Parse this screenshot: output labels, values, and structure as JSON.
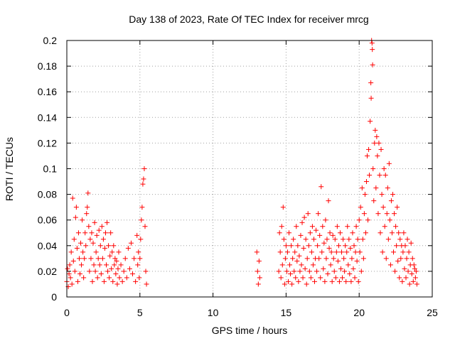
{
  "chart_data": {
    "type": "scatter",
    "title": "Day 138 of 2023, Rate Of TEC Index for receiver mrcg",
    "xlabel": "GPS time / hours",
    "ylabel": "ROTI / TECUs",
    "xlim": [
      0,
      25
    ],
    "ylim": [
      0,
      0.2
    ],
    "xticks": [
      0,
      5,
      10,
      15,
      20,
      25
    ],
    "yticks": [
      0,
      0.02,
      0.04,
      0.06,
      0.08,
      0.1,
      0.12,
      0.14,
      0.16,
      0.18,
      0.2
    ],
    "xtick_labels": [
      "0",
      "5",
      "10",
      "15",
      "20",
      "25"
    ],
    "ytick_labels": [
      "0",
      "0.02",
      "0.04",
      "0.06",
      "0.08",
      "0.1",
      "0.12",
      "0.14",
      "0.16",
      "0.18",
      "0.2"
    ],
    "grid": true,
    "marker": "+",
    "color": "#ff0000",
    "series": [
      {
        "points": [
          [
            0.0,
            0.012
          ],
          [
            0.05,
            0.022
          ],
          [
            0.1,
            0.008
          ],
          [
            0.15,
            0.018
          ],
          [
            0.2,
            0.025
          ],
          [
            0.25,
            0.015
          ],
          [
            0.3,
            0.035
          ],
          [
            0.35,
            0.01
          ],
          [
            0.4,
            0.077
          ],
          [
            0.45,
            0.028
          ],
          [
            0.5,
            0.045
          ],
          [
            0.55,
            0.02
          ],
          [
            0.6,
            0.062
          ],
          [
            0.65,
            0.07
          ],
          [
            0.7,
            0.038
          ],
          [
            0.75,
            0.012
          ],
          [
            0.8,
            0.05
          ],
          [
            0.85,
            0.03
          ],
          [
            0.9,
            0.018
          ],
          [
            0.95,
            0.042
          ],
          [
            1.0,
            0.025
          ],
          [
            1.05,
            0.06
          ],
          [
            1.1,
            0.035
          ],
          [
            1.15,
            0.015
          ],
          [
            1.2,
            0.03
          ],
          [
            1.25,
            0.05
          ],
          [
            1.3,
            0.04
          ],
          [
            1.35,
            0.065
          ],
          [
            1.4,
            0.07
          ],
          [
            1.45,
            0.081
          ],
          [
            1.5,
            0.055
          ],
          [
            1.55,
            0.02
          ],
          [
            1.6,
            0.045
          ],
          [
            1.65,
            0.03
          ],
          [
            1.7,
            0.05
          ],
          [
            1.75,
            0.012
          ],
          [
            1.8,
            0.042
          ],
          [
            1.85,
            0.025
          ],
          [
            1.9,
            0.058
          ],
          [
            1.95,
            0.02
          ],
          [
            2.0,
            0.035
          ],
          [
            2.05,
            0.048
          ],
          [
            2.1,
            0.015
          ],
          [
            2.15,
            0.03
          ],
          [
            2.2,
            0.052
          ],
          [
            2.25,
            0.025
          ],
          [
            2.3,
            0.04
          ],
          [
            2.35,
            0.018
          ],
          [
            2.4,
            0.055
          ],
          [
            2.45,
            0.03
          ],
          [
            2.5,
            0.045
          ],
          [
            2.55,
            0.012
          ],
          [
            2.6,
            0.038
          ],
          [
            2.65,
            0.05
          ],
          [
            2.7,
            0.025
          ],
          [
            2.75,
            0.058
          ],
          [
            2.8,
            0.02
          ],
          [
            2.85,
            0.04
          ],
          [
            2.9,
            0.015
          ],
          [
            2.95,
            0.032
          ],
          [
            3.0,
            0.05
          ],
          [
            3.05,
            0.022
          ],
          [
            3.1,
            0.035
          ],
          [
            3.15,
            0.012
          ],
          [
            3.2,
            0.04
          ],
          [
            3.25,
            0.025
          ],
          [
            3.3,
            0.03
          ],
          [
            3.35,
            0.018
          ],
          [
            3.4,
            0.028
          ],
          [
            3.45,
            0.01
          ],
          [
            3.5,
            0.022
          ],
          [
            3.55,
            0.035
          ],
          [
            3.6,
            0.015
          ],
          [
            3.7,
            0.025
          ],
          [
            3.8,
            0.012
          ],
          [
            3.9,
            0.02
          ],
          [
            4.0,
            0.03
          ],
          [
            4.1,
            0.015
          ],
          [
            4.2,
            0.038
          ],
          [
            4.3,
            0.022
          ],
          [
            4.4,
            0.042
          ],
          [
            4.5,
            0.018
          ],
          [
            4.6,
            0.03
          ],
          [
            4.7,
            0.012
          ],
          [
            4.8,
            0.048
          ],
          [
            4.85,
            0.025
          ],
          [
            4.9,
            0.035
          ],
          [
            4.95,
            0.015
          ],
          [
            5.0,
            0.03
          ],
          [
            5.05,
            0.045
          ],
          [
            5.1,
            0.06
          ],
          [
            5.15,
            0.07
          ],
          [
            5.2,
            0.088
          ],
          [
            5.25,
            0.092
          ],
          [
            5.3,
            0.1
          ],
          [
            5.35,
            0.055
          ],
          [
            5.4,
            0.02
          ],
          [
            5.45,
            0.01
          ],
          [
            13.0,
            0.035
          ],
          [
            13.05,
            0.02
          ],
          [
            13.1,
            0.01
          ],
          [
            13.15,
            0.028
          ],
          [
            13.2,
            0.015
          ],
          [
            14.5,
            0.02
          ],
          [
            14.55,
            0.05
          ],
          [
            14.6,
            0.035
          ],
          [
            14.65,
            0.015
          ],
          [
            14.7,
            0.055
          ],
          [
            14.75,
            0.025
          ],
          [
            14.8,
            0.07
          ],
          [
            14.85,
            0.045
          ],
          [
            14.9,
            0.01
          ],
          [
            14.95,
            0.03
          ],
          [
            15.0,
            0.04
          ],
          [
            15.05,
            0.02
          ],
          [
            15.1,
            0.035
          ],
          [
            15.15,
            0.012
          ],
          [
            15.2,
            0.05
          ],
          [
            15.25,
            0.025
          ],
          [
            15.3,
            0.018
          ],
          [
            15.35,
            0.04
          ],
          [
            15.4,
            0.01
          ],
          [
            15.45,
            0.03
          ],
          [
            15.5,
            0.045
          ],
          [
            15.55,
            0.02
          ],
          [
            15.6,
            0.035
          ],
          [
            15.65,
            0.015
          ],
          [
            15.7,
            0.055
          ],
          [
            15.75,
            0.028
          ],
          [
            15.8,
            0.04
          ],
          [
            15.85,
            0.012
          ],
          [
            15.9,
            0.032
          ],
          [
            15.95,
            0.02
          ],
          [
            16.0,
            0.048
          ],
          [
            16.05,
            0.025
          ],
          [
            16.1,
            0.058
          ],
          [
            16.15,
            0.015
          ],
          [
            16.2,
            0.038
          ],
          [
            16.25,
            0.062
          ],
          [
            16.3,
            0.022
          ],
          [
            16.35,
            0.045
          ],
          [
            16.4,
            0.01
          ],
          [
            16.45,
            0.03
          ],
          [
            16.5,
            0.065
          ],
          [
            16.55,
            0.04
          ],
          [
            16.6,
            0.02
          ],
          [
            16.65,
            0.05
          ],
          [
            16.7,
            0.015
          ],
          [
            16.75,
            0.035
          ],
          [
            16.8,
            0.055
          ],
          [
            16.85,
            0.025
          ],
          [
            16.9,
            0.045
          ],
          [
            16.95,
            0.012
          ],
          [
            17.0,
            0.03
          ],
          [
            17.05,
            0.052
          ],
          [
            17.1,
            0.02
          ],
          [
            17.15,
            0.04
          ],
          [
            17.2,
            0.065
          ],
          [
            17.25,
            0.03
          ],
          [
            17.3,
            0.048
          ],
          [
            17.35,
            0.015
          ],
          [
            17.4,
            0.086
          ],
          [
            17.45,
            0.035
          ],
          [
            17.5,
            0.055
          ],
          [
            17.55,
            0.022
          ],
          [
            17.6,
            0.042
          ],
          [
            17.65,
            0.012
          ],
          [
            17.7,
            0.06
          ],
          [
            17.75,
            0.03
          ],
          [
            17.8,
            0.045
          ],
          [
            17.85,
            0.018
          ],
          [
            17.9,
            0.075
          ],
          [
            17.95,
            0.038
          ],
          [
            18.0,
            0.05
          ],
          [
            18.05,
            0.025
          ],
          [
            18.1,
            0.035
          ],
          [
            18.15,
            0.012
          ],
          [
            18.2,
            0.048
          ],
          [
            18.25,
            0.03
          ],
          [
            18.3,
            0.02
          ],
          [
            18.35,
            0.045
          ],
          [
            18.4,
            0.015
          ],
          [
            18.45,
            0.035
          ],
          [
            18.5,
            0.055
          ],
          [
            18.55,
            0.028
          ],
          [
            18.6,
            0.04
          ],
          [
            18.65,
            0.012
          ],
          [
            18.7,
            0.05
          ],
          [
            18.75,
            0.022
          ],
          [
            18.8,
            0.035
          ],
          [
            18.85,
            0.015
          ],
          [
            18.9,
            0.045
          ],
          [
            18.95,
            0.03
          ],
          [
            19.0,
            0.02
          ],
          [
            19.05,
            0.04
          ],
          [
            19.1,
            0.012
          ],
          [
            19.15,
            0.035
          ],
          [
            19.2,
            0.055
          ],
          [
            19.25,
            0.025
          ],
          [
            19.3,
            0.045
          ],
          [
            19.35,
            0.018
          ],
          [
            19.4,
            0.038
          ],
          [
            19.45,
            0.012
          ],
          [
            19.5,
            0.03
          ],
          [
            19.55,
            0.05
          ],
          [
            19.6,
            0.022
          ],
          [
            19.65,
            0.04
          ],
          [
            19.7,
            0.015
          ],
          [
            19.75,
            0.035
          ],
          [
            19.8,
            0.055
          ],
          [
            19.85,
            0.028
          ],
          [
            19.9,
            0.045
          ],
          [
            19.95,
            0.012
          ],
          [
            20.0,
            0.06
          ],
          [
            20.05,
            0.035
          ],
          [
            20.1,
            0.07
          ],
          [
            20.15,
            0.02
          ],
          [
            20.2,
            0.085
          ],
          [
            20.25,
            0.045
          ],
          [
            20.3,
            0.03
          ],
          [
            20.35,
            0.065
          ],
          [
            20.4,
            0.08
          ],
          [
            20.45,
            0.05
          ],
          [
            20.5,
            0.09
          ],
          [
            20.55,
            0.11
          ],
          [
            20.6,
            0.06
          ],
          [
            20.65,
            0.115
          ],
          [
            20.7,
            0.095
          ],
          [
            20.75,
            0.137
          ],
          [
            20.8,
            0.167
          ],
          [
            20.82,
            0.155
          ],
          [
            20.85,
            0.2
          ],
          [
            20.88,
            0.198
          ],
          [
            20.9,
            0.193
          ],
          [
            20.92,
            0.181
          ],
          [
            20.95,
            0.1
          ],
          [
            21.0,
            0.075
          ],
          [
            21.05,
            0.12
          ],
          [
            21.1,
            0.13
          ],
          [
            21.15,
            0.085
          ],
          [
            21.2,
            0.125
          ],
          [
            21.25,
            0.11
          ],
          [
            21.3,
            0.065
          ],
          [
            21.35,
            0.12
          ],
          [
            21.4,
            0.095
          ],
          [
            21.45,
            0.05
          ],
          [
            21.5,
            0.115
          ],
          [
            21.55,
            0.08
          ],
          [
            21.6,
            0.035
          ],
          [
            21.65,
            0.07
          ],
          [
            21.7,
            0.1
          ],
          [
            21.75,
            0.055
          ],
          [
            21.8,
            0.095
          ],
          [
            21.85,
            0.03
          ],
          [
            21.9,
            0.065
          ],
          [
            21.95,
            0.085
          ],
          [
            22.0,
            0.045
          ],
          [
            22.05,
            0.104
          ],
          [
            22.1,
            0.06
          ],
          [
            22.15,
            0.025
          ],
          [
            22.2,
            0.075
          ],
          [
            22.25,
            0.05
          ],
          [
            22.3,
            0.08
          ],
          [
            22.35,
            0.035
          ],
          [
            22.4,
            0.065
          ],
          [
            22.45,
            0.02
          ],
          [
            22.5,
            0.055
          ],
          [
            22.55,
            0.04
          ],
          [
            22.6,
            0.07
          ],
          [
            22.65,
            0.028
          ],
          [
            22.7,
            0.05
          ],
          [
            22.75,
            0.015
          ],
          [
            22.8,
            0.045
          ],
          [
            22.85,
            0.03
          ],
          [
            22.9,
            0.04
          ],
          [
            22.95,
            0.012
          ],
          [
            23.0,
            0.035
          ],
          [
            23.05,
            0.05
          ],
          [
            23.1,
            0.022
          ],
          [
            23.15,
            0.04
          ],
          [
            23.2,
            0.015
          ],
          [
            23.25,
            0.03
          ],
          [
            23.3,
            0.045
          ],
          [
            23.35,
            0.02
          ],
          [
            23.4,
            0.035
          ],
          [
            23.45,
            0.01
          ],
          [
            23.5,
            0.025
          ],
          [
            23.55,
            0.042
          ],
          [
            23.6,
            0.018
          ],
          [
            23.65,
            0.03
          ],
          [
            23.7,
            0.012
          ],
          [
            23.75,
            0.025
          ],
          [
            23.8,
            0.022
          ],
          [
            23.85,
            0.015
          ],
          [
            23.9,
            0.02
          ],
          [
            23.95,
            0.01
          ]
        ]
      }
    ]
  }
}
